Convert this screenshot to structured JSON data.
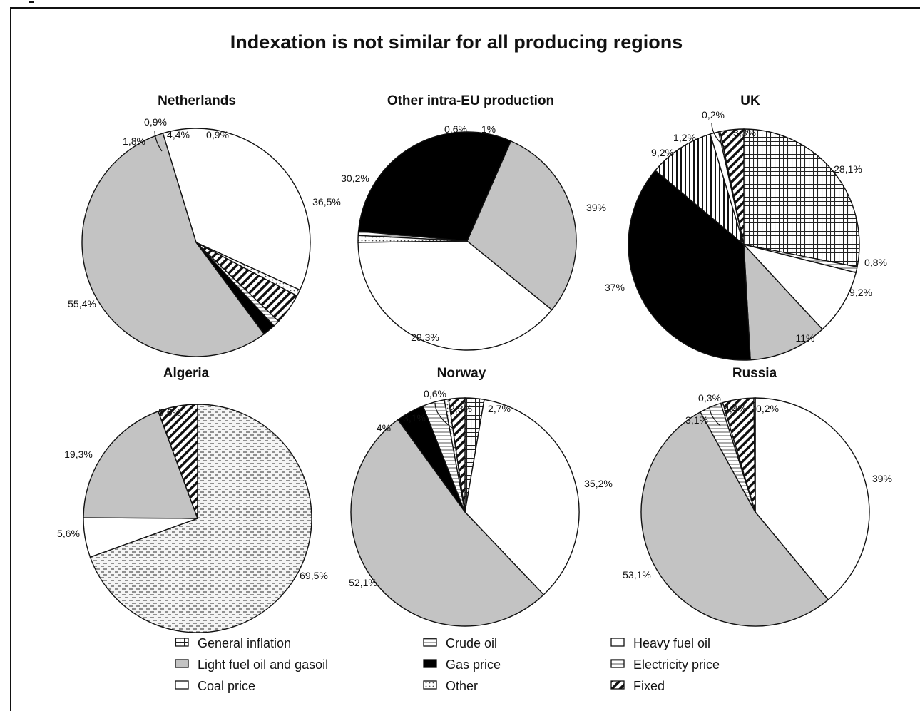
{
  "chart_data": {
    "type": "pie",
    "title": "Indexation is not similar for all producing regions",
    "legend": {
      "placement": "bottom",
      "entries": [
        {
          "key": "general_inflation",
          "label": "General inflation",
          "pattern": "crosshatch"
        },
        {
          "key": "crude_oil",
          "label": "Crude oil",
          "pattern": "horizontal-lines"
        },
        {
          "key": "heavy_fuel_oil",
          "label": "Heavy fuel oil",
          "pattern": "white"
        },
        {
          "key": "light_fuel_oil",
          "label": "Light fuel oil and gasoil",
          "pattern": "light-gray"
        },
        {
          "key": "gas_price",
          "label": "Gas price",
          "pattern": "black"
        },
        {
          "key": "electricity_price",
          "label": "Electricity price",
          "pattern": "horizontal-lines"
        },
        {
          "key": "coal_price",
          "label": "Coal price",
          "pattern": "white"
        },
        {
          "key": "other",
          "label": "Other",
          "pattern": "dots"
        },
        {
          "key": "fixed",
          "label": "Fixed",
          "pattern": "diagonal-stripes"
        }
      ]
    },
    "pies": [
      {
        "title": "Netherlands",
        "slices": [
          {
            "category": "heavy_fuel_oil",
            "value": 36.5,
            "label": "36,5%"
          },
          {
            "category": "light_fuel_oil",
            "value": 55.4,
            "label": "55,4%"
          },
          {
            "category": "gas_price",
            "value": 1.8,
            "label": "1,8%"
          },
          {
            "category": "crude_oil",
            "value": 0.9,
            "label": "0,9%"
          },
          {
            "category": "fixed",
            "value": 4.4,
            "label": "4,4%"
          },
          {
            "category": "other",
            "value": 0.9,
            "label": "0,9%"
          }
        ]
      },
      {
        "title": "Other intra-EU production",
        "slices": [
          {
            "category": "heavy_fuel_oil",
            "value": 39,
            "label": "39%"
          },
          {
            "category": "light_fuel_oil",
            "value": 29.3,
            "label": "29,3%"
          },
          {
            "category": "gas_price",
            "value": 30.2,
            "label": "30,2%"
          },
          {
            "category": "crude_oil",
            "value": 0.6,
            "label": "0,6%"
          },
          {
            "category": "other",
            "value": 1,
            "label": "1%"
          }
        ]
      },
      {
        "title": "UK",
        "slices": [
          {
            "category": "general_inflation",
            "value": 28.1,
            "label": "28,1%"
          },
          {
            "category": "crude_oil",
            "value": 0.8,
            "label": "0,8%"
          },
          {
            "category": "heavy_fuel_oil",
            "value": 9.2,
            "label": "9,2%"
          },
          {
            "category": "light_fuel_oil",
            "value": 11,
            "label": "11%"
          },
          {
            "category": "gas_price",
            "value": 37,
            "label": "37%"
          },
          {
            "category": "electricity_price",
            "value": 9.2,
            "label": "9,2%"
          },
          {
            "category": "coal_price",
            "value": 1.2,
            "label": "1,2%"
          },
          {
            "category": "other",
            "value": 0.2,
            "label": "0,2%"
          },
          {
            "category": "fixed",
            "value": 3.3,
            "label": "3,3%"
          }
        ]
      },
      {
        "title": "Algeria",
        "slices": [
          {
            "category": "crude_oil",
            "value": 69.5,
            "label": "69,5%"
          },
          {
            "category": "heavy_fuel_oil",
            "value": 5.6,
            "label": "5,6%"
          },
          {
            "category": "light_fuel_oil",
            "value": 19.3,
            "label": "19,3%"
          },
          {
            "category": "fixed",
            "value": 5.6,
            "label": "5,6%"
          }
        ]
      },
      {
        "title": "Norway",
        "slices": [
          {
            "category": "general_inflation",
            "value": 2.7,
            "label": "2,7%"
          },
          {
            "category": "heavy_fuel_oil",
            "value": 35.2,
            "label": "35,2%"
          },
          {
            "category": "light_fuel_oil",
            "value": 52.1,
            "label": "52,1%"
          },
          {
            "category": "gas_price",
            "value": 4,
            "label": "4%"
          },
          {
            "category": "electricity_price",
            "value": 3.1,
            "label": "3,1%"
          },
          {
            "category": "other",
            "value": 0.6,
            "label": "0,6%"
          },
          {
            "category": "fixed",
            "value": 2.3,
            "label": "2,3%"
          }
        ]
      },
      {
        "title": "Russia",
        "slices": [
          {
            "category": "heavy_fuel_oil",
            "value": 39,
            "label": "39%"
          },
          {
            "category": "light_fuel_oil",
            "value": 53.1,
            "label": "53,1%"
          },
          {
            "category": "electricity_price",
            "value": 3.1,
            "label": "3,1%"
          },
          {
            "category": "other",
            "value": 0.3,
            "label": "0,3%"
          },
          {
            "category": "fixed",
            "value": 4.4,
            "label": "4,4%"
          },
          {
            "category": "general_inflation",
            "value": 0.2,
            "label": "0,2%"
          }
        ]
      }
    ]
  }
}
